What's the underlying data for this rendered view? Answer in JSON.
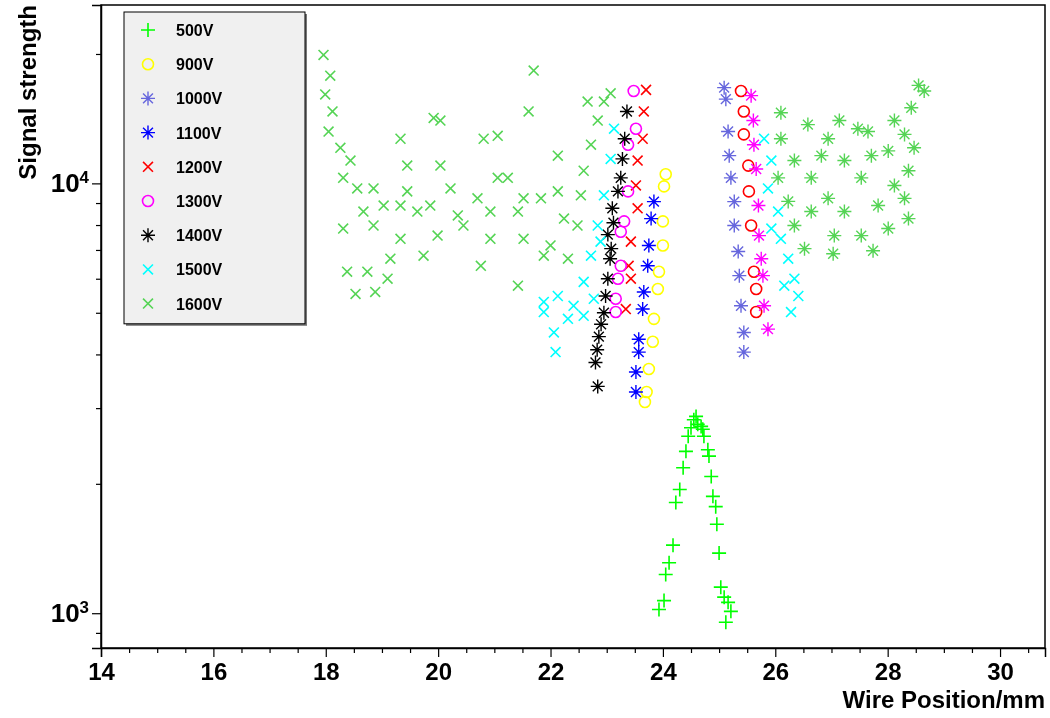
{
  "chart_data": {
    "type": "scatter",
    "xlabel": "Wire Position/mm",
    "ylabel": "Signal strength",
    "log": "y",
    "grid": false,
    "legend": "top left",
    "xlim": [
      14,
      30.8
    ],
    "ylim": [
      830,
      26000
    ],
    "xticks": [
      14,
      {
        "value": 14.5,
        "label": null
      },
      {
        "value": 15,
        "label": null
      },
      {
        "value": 15.5,
        "label": null
      },
      16,
      {
        "value": 16.5,
        "label": null
      },
      {
        "value": 17,
        "label": null
      },
      {
        "value": 17.5,
        "label": null
      },
      18,
      {
        "value": 18.5,
        "label": null
      },
      {
        "value": 19,
        "label": null
      },
      {
        "value": 19.5,
        "label": null
      },
      20,
      {
        "value": 20.5,
        "label": null
      },
      {
        "value": 21,
        "label": null
      },
      {
        "value": 21.5,
        "label": null
      },
      22,
      {
        "value": 22.5,
        "label": null
      },
      {
        "value": 23,
        "label": null
      },
      {
        "value": 23.5,
        "label": null
      },
      24,
      {
        "value": 24.5,
        "label": null
      },
      {
        "value": 25,
        "label": null
      },
      {
        "value": 25.5,
        "label": null
      },
      26,
      {
        "value": 26.5,
        "label": null
      },
      {
        "value": 27,
        "label": null
      },
      {
        "value": 27.5,
        "label": null
      },
      28,
      {
        "value": 28.5,
        "label": null
      },
      {
        "value": 29,
        "label": null
      },
      {
        "value": 29.5,
        "label": null
      },
      30,
      {
        "value": 30.5,
        "label": null
      }
    ],
    "yticks": [
      {
        "value": 900,
        "label": null
      },
      {
        "value": 1000,
        "label": "10$^{3}$"
      },
      {
        "value": 2000,
        "label": null
      },
      {
        "value": 3000,
        "label": null
      },
      {
        "value": 4000,
        "label": null
      },
      {
        "value": 5000,
        "label": null
      },
      {
        "value": 6000,
        "label": null
      },
      {
        "value": 7000,
        "label": null
      },
      {
        "value": 8000,
        "label": null
      },
      {
        "value": 9000,
        "label": null
      },
      {
        "value": 10000,
        "label": "10$^{4}$"
      },
      {
        "value": 20000,
        "label": null
      }
    ],
    "series": [
      {
        "name": "500V",
        "color": "#00ff00",
        "marker": "cross",
        "x": [
          24.59,
          24.55,
          24.62,
          24.71,
          24.5,
          24.45,
          24.41,
          24.36,
          24.3,
          24.23,
          24.18,
          24.11,
          24.05,
          24.02,
          23.93,
          24.68,
          24.73,
          24.8,
          24.82,
          24.86,
          24.89,
          24.94,
          24.96,
          25.0,
          25.03,
          25.09,
          25.16,
          25.21,
          25.12
        ],
        "values": [
          2870,
          2820,
          2750,
          2680,
          2700,
          2580,
          2380,
          2180,
          1940,
          1810,
          1440,
          1310,
          1230,
          1070,
          1020,
          2720,
          2580,
          2400,
          2320,
          2080,
          1870,
          1770,
          1610,
          1380,
          1150,
          1090,
          1060,
          1010,
          953
        ]
      },
      {
        "name": "900V",
        "color": "#ffff00",
        "marker": "circle",
        "x": [
          24.05,
          24.02,
          24.0,
          24.0,
          23.93,
          23.91,
          23.84,
          23.82,
          23.75,
          23.71,
          23.68
        ],
        "values": [
          10500,
          9840,
          8160,
          7170,
          6230,
          5680,
          4840,
          4280,
          3700,
          3270,
          3100
        ]
      },
      {
        "name": "1000V",
        "color": "#6666dd",
        "marker": "star",
        "x": [
          25.09,
          25.12,
          25.16,
          25.18,
          25.21,
          25.27,
          25.27,
          25.34,
          25.36,
          25.39,
          25.44,
          25.44
        ],
        "values": [
          16700,
          15700,
          13200,
          11600,
          10300,
          9070,
          7980,
          6940,
          6100,
          5190,
          4500,
          4050
        ]
      },
      {
        "name": "1100V",
        "color": "#0000ff",
        "marker": "star",
        "x": [
          23.84,
          23.79,
          23.75,
          23.73,
          23.66,
          23.64,
          23.57,
          23.57,
          23.52,
          23.52
        ],
        "values": [
          9070,
          8280,
          7170,
          6430,
          5590,
          5100,
          4340,
          4050,
          3640,
          3270
        ]
      },
      {
        "name": "1200V",
        "color": "#ff0000",
        "marker": "x",
        "x": [
          23.7,
          23.66,
          23.64,
          23.55,
          23.52,
          23.55,
          23.43,
          23.39,
          23.43,
          23.34
        ],
        "values": [
          16500,
          14700,
          12700,
          11300,
          9890,
          8750,
          7320,
          6430,
          6000,
          5100
        ]
      },
      {
        "name": "1300V",
        "color": "#ff00ff",
        "marker": "circle",
        "x": [
          23.48,
          23.52,
          23.38,
          23.38,
          23.31,
          23.25,
          23.25,
          23.2,
          23.16,
          23.16
        ],
        "values": [
          16400,
          13400,
          12300,
          9580,
          8160,
          7720,
          6430,
          6000,
          5390,
          5020
        ]
      },
      {
        "name": "1400V",
        "color": "#000000",
        "marker": "star",
        "x": [
          22.84,
          22.8,
          22.83,
          22.86,
          22.9,
          22.95,
          22.98,
          23.02,
          23.06,
          23.08,
          23.02,
          23.12,
          23.1,
          23.2,
          23.25,
          23.28,
          23.32,
          23.36
        ],
        "values": [
          3370,
          3830,
          4100,
          4400,
          4700,
          5000,
          5470,
          6000,
          6680,
          7050,
          7600,
          8100,
          8750,
          9580,
          10300,
          11400,
          12700,
          14700
        ]
      },
      {
        "name": "1500V",
        "color": "#00ffff",
        "marker": "x",
        "x": [
          21.88,
          22.13,
          22.06,
          22.09,
          22.41,
          22.59,
          22.72,
          22.84,
          22.95,
          23.07,
          23.13,
          22.31,
          22.59,
          22.77,
          21.88,
          22.89,
          25.8,
          25.93,
          25.87,
          26.05,
          26.1,
          26.23,
          26.34,
          26.41,
          26.28,
          25.93,
          26.16
        ],
        "values": [
          5020,
          5470,
          4500,
          4050,
          5190,
          5900,
          6790,
          7980,
          9380,
          11400,
          13400,
          4840,
          4920,
          5390,
          5300,
          7320,
          12700,
          11300,
          9730,
          8600,
          7430,
          6680,
          6000,
          5470,
          5020,
          7850,
          5780
        ]
      },
      {
        "name": "1600V",
        "color": "#55d455",
        "marker": "x",
        "x": [
          17.96,
          18.08,
          17.99,
          18.12,
          18.05,
          18.26,
          18.44,
          18.31,
          18.56,
          18.31,
          18.38,
          18.53,
          18.88,
          18.74,
          19.1,
          19.15,
          18.85,
          19.03,
          19.33,
          19.45,
          19.33,
          19.33,
          19.74,
          19.86,
          19.92,
          20.04,
          20.04,
          20.22,
          20.35,
          20.45,
          19.99,
          19.63,
          20.7,
          20.81,
          21.06,
          20.76,
          20.93,
          21.24,
          21.42,
          21.7,
          21.61,
          21.42,
          21.52,
          21.83,
          22.13,
          22.24,
          22.0,
          22.48,
          22.31,
          22.59,
          22.72,
          22.66,
          22.95,
          23.07,
          22.84,
          22.54,
          21.88,
          21.06,
          18.85,
          18.67,
          19.45,
          20.93,
          21.52,
          22.13
        ],
        "values": [
          19900,
          17800,
          16100,
          14700,
          13200,
          12100,
          11300,
          10300,
          9730,
          7850,
          6230,
          5530,
          5590,
          6230,
          6000,
          6680,
          7980,
          8880,
          12700,
          11000,
          8880,
          7430,
          6790,
          8880,
          14200,
          14000,
          11000,
          9730,
          8420,
          7980,
          7560,
          8600,
          9230,
          12700,
          12900,
          6430,
          7430,
          10300,
          8600,
          18300,
          14700,
          5780,
          7430,
          9230,
          11600,
          8280,
          7170,
          7980,
          6680,
          10700,
          12300,
          15500,
          15500,
          16200,
          14000,
          9380,
          6790,
          10300,
          9730,
          8600,
          9580,
          8600,
          9230,
          9580
        ]
      },
      {
        "color": "#55d455",
        "marker": "star",
        "x": [
          28.55,
          28.65,
          28.42,
          28.12,
          28.3,
          26.1,
          26.58,
          27.14,
          27.47,
          27.65,
          26.1,
          26.94,
          28.47,
          26.34,
          27.23,
          28.01,
          28.37,
          26.05,
          26.64,
          27.53,
          28.12,
          26.23,
          26.94,
          27.83,
          28.3,
          26.34,
          27.05,
          27.53,
          28.01,
          26.52,
          27.03,
          27.74,
          27.23,
          26.64,
          27.71,
          26.82,
          28.37
        ],
        "values": [
          16900,
          16400,
          15000,
          14000,
          13000,
          14600,
          13700,
          14000,
          13400,
          13200,
          12700,
          12700,
          12100,
          11300,
          11300,
          11900,
          10700,
          10300,
          10300,
          10300,
          9890,
          9080,
          9230,
          8880,
          9230,
          7980,
          7560,
          7560,
          7850,
          7050,
          6860,
          6970,
          8600,
          8600,
          11600,
          11600,
          8280
        ]
      },
      {
        "color": "#ff0000",
        "marker": "circle",
        "x": [
          25.39,
          25.44,
          25.44,
          25.52,
          25.53,
          25.57,
          25.62,
          25.66,
          25.66
        ],
        "values": [
          16400,
          14700,
          13000,
          11000,
          9580,
          7980,
          6230,
          5680,
          5020
        ]
      },
      {
        "color": "#ff00ff",
        "marker": "star",
        "x": [
          25.57,
          25.61,
          25.62,
          25.66,
          25.7,
          25.71,
          25.75,
          25.78,
          25.8,
          25.87
        ],
        "values": [
          16000,
          14000,
          12300,
          10800,
          8880,
          7560,
          6680,
          6100,
          5190,
          4580
        ]
      }
    ]
  }
}
